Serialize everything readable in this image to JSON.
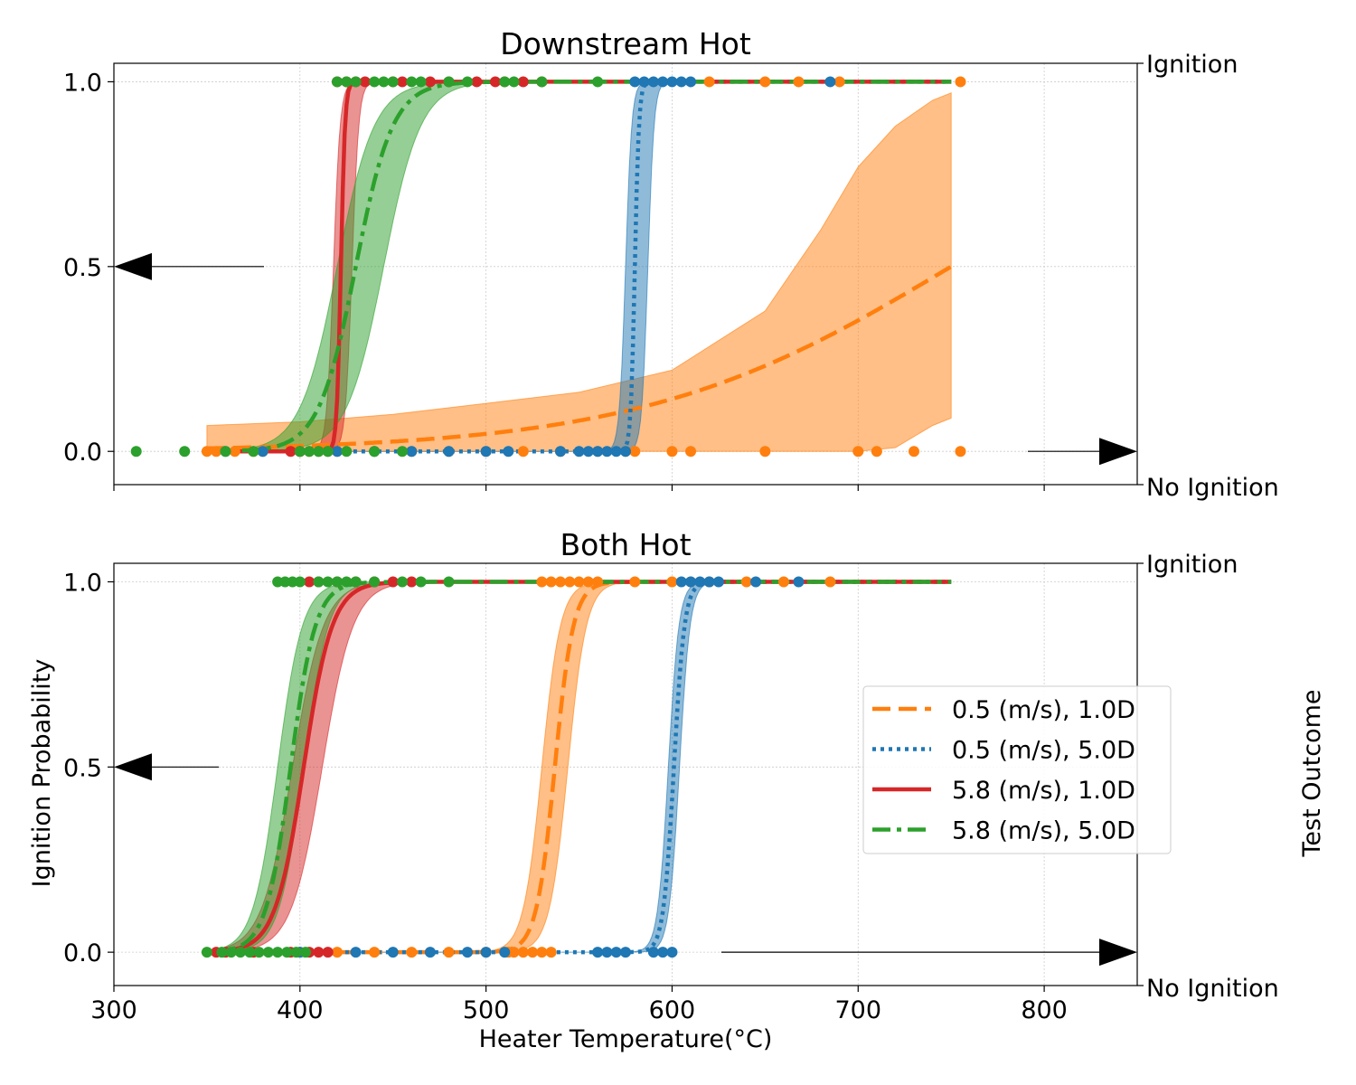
{
  "figure": {
    "xlabel": "Heater Temperature(°C)",
    "ylabel": "Ignition Probability",
    "right_label": "Test Outcome",
    "right_ticks": [
      "Ignition",
      "No Ignition"
    ],
    "legend_position": "center-right (bottom panel)"
  },
  "chart_data": [
    {
      "type": "line",
      "title": "Downstream Hot",
      "xlim": [
        300,
        850
      ],
      "ylim": [
        -0.09,
        1.05
      ],
      "x_ticks": [
        300,
        400,
        500,
        600,
        700,
        800
      ],
      "y_ticks": [
        "0.0",
        "0.5",
        "1.0"
      ],
      "grid": true,
      "series": [
        {
          "name": "0.5 (m/s), 1.0D",
          "color": "#ff7f0e",
          "style": "dashed",
          "curve": {
            "x0": 750,
            "k": 0.012,
            "x_range": [
              350,
              750
            ]
          },
          "band": {
            "x": [
              350,
              400,
              450,
              500,
              550,
              600,
              650,
              680,
              700,
              720,
              740,
              750
            ],
            "lower": [
              0,
              0,
              0,
              0,
              0,
              0,
              0,
              0,
              0,
              0.01,
              0.07,
              0.09
            ],
            "upper": [
              0.07,
              0.08,
              0.1,
              0.13,
              0.16,
              0.22,
              0.38,
              0.6,
              0.77,
              0.88,
              0.95,
              0.97
            ]
          },
          "points_ignition": [
            620,
            650,
            668,
            690,
            755
          ],
          "points_no_ignition": [
            350,
            355,
            365,
            375,
            380,
            400,
            420,
            440,
            460,
            480,
            500,
            520,
            540,
            560,
            575,
            580,
            600,
            610,
            650,
            700,
            710,
            730,
            755
          ]
        },
        {
          "name": "0.5 (m/s), 5.0D",
          "color": "#1f77b4",
          "style": "dotted",
          "curve": {
            "x0": 580,
            "k": 0.9,
            "x_range": [
              350,
              750
            ]
          },
          "band": {
            "x0_low": 575,
            "x0_high": 587,
            "k": 0.6
          },
          "points_ignition": [
            580,
            585,
            590,
            595,
            600,
            605,
            610,
            685
          ],
          "points_no_ignition": [
            360,
            380,
            400,
            420,
            440,
            460,
            480,
            500,
            512,
            540,
            550,
            555,
            560,
            565,
            570,
            575
          ],
          "point_color": "#1f77b4"
        },
        {
          "name": "5.8 (m/s), 1.0D",
          "color": "#d62728",
          "style": "solid",
          "curve": {
            "x0": 422,
            "k": 0.9,
            "x_range": [
              350,
              750
            ]
          },
          "band": {
            "x0_low": 418,
            "x0_high": 428,
            "k": 0.55
          },
          "points_ignition": [
            420,
            425,
            430,
            435,
            450,
            455,
            470,
            480,
            495,
            505,
            510,
            520,
            530
          ],
          "points_no_ignition": [
            395,
            400,
            405,
            410,
            415
          ]
        },
        {
          "name": "5.8 (m/s), 5.0D",
          "color": "#2ca02c",
          "style": "dashdot",
          "curve": {
            "x0": 430,
            "k": 0.1,
            "x_range": [
              350,
              750
            ]
          },
          "band": {
            "x0_low": 420,
            "x0_high": 445,
            "k": 0.1
          },
          "points_ignition": [
            420,
            425,
            430,
            440,
            445,
            450,
            460,
            465,
            480,
            490,
            510,
            515,
            530,
            560
          ],
          "points_no_ignition": [
            312,
            338,
            360,
            375,
            400,
            405,
            410,
            415,
            425,
            440,
            455
          ]
        }
      ]
    },
    {
      "type": "line",
      "title": "Both Hot",
      "xlim": [
        300,
        850
      ],
      "ylim": [
        -0.09,
        1.05
      ],
      "x_ticks": [
        300,
        400,
        500,
        600,
        700,
        800
      ],
      "y_ticks": [
        "0.0",
        "0.5",
        "1.0"
      ],
      "grid": true,
      "series": [
        {
          "name": "0.5 (m/s), 1.0D",
          "color": "#ff7f0e",
          "style": "dashed",
          "curve": {
            "x0": 537,
            "k": 0.2,
            "x_range": [
              350,
              750
            ]
          },
          "band": {
            "x0_low": 530,
            "x0_high": 544,
            "k": 0.2
          },
          "points_ignition": [
            530,
            535,
            540,
            545,
            550,
            555,
            560,
            580,
            600,
            610,
            620,
            640,
            660,
            685
          ],
          "points_no_ignition": [
            400,
            420,
            440,
            460,
            480,
            500,
            512,
            515,
            520,
            525,
            530,
            535
          ]
        },
        {
          "name": "0.5 (m/s), 5.0D",
          "color": "#1f77b4",
          "style": "dotted",
          "curve": {
            "x0": 601,
            "k": 0.35,
            "x_range": [
              350,
              750
            ]
          },
          "band": {
            "x0_low": 598,
            "x0_high": 604,
            "k": 0.35
          },
          "points_ignition": [
            605,
            610,
            615,
            620,
            625,
            645,
            668
          ],
          "points_no_ignition": [
            400,
            430,
            450,
            470,
            490,
            500,
            510,
            560,
            565,
            570,
            575,
            590,
            595,
            600
          ]
        },
        {
          "name": "5.8 (m/s), 1.0D",
          "color": "#d62728",
          "style": "solid",
          "curve": {
            "x0": 402,
            "k": 0.13,
            "x_range": [
              350,
              750
            ]
          },
          "band": {
            "x0_low": 396,
            "x0_high": 412,
            "k": 0.12
          },
          "points_ignition": [
            405,
            410,
            420,
            430,
            440,
            450,
            460
          ],
          "points_no_ignition": [
            355,
            360,
            375,
            395,
            405,
            410,
            415
          ]
        },
        {
          "name": "5.8 (m/s), 5.0D",
          "color": "#2ca02c",
          "style": "dashdot",
          "curve": {
            "x0": 395,
            "k": 0.15,
            "x_range": [
              350,
              750
            ]
          },
          "band": {
            "x0_low": 388,
            "x0_high": 402,
            "k": 0.15
          },
          "points_ignition": [
            388,
            392,
            396,
            400,
            410,
            415,
            420,
            425,
            430,
            440,
            455,
            465,
            480
          ],
          "points_no_ignition": [
            350,
            358,
            363,
            368,
            373,
            378,
            383,
            388,
            393,
            398,
            403
          ]
        }
      ]
    }
  ]
}
